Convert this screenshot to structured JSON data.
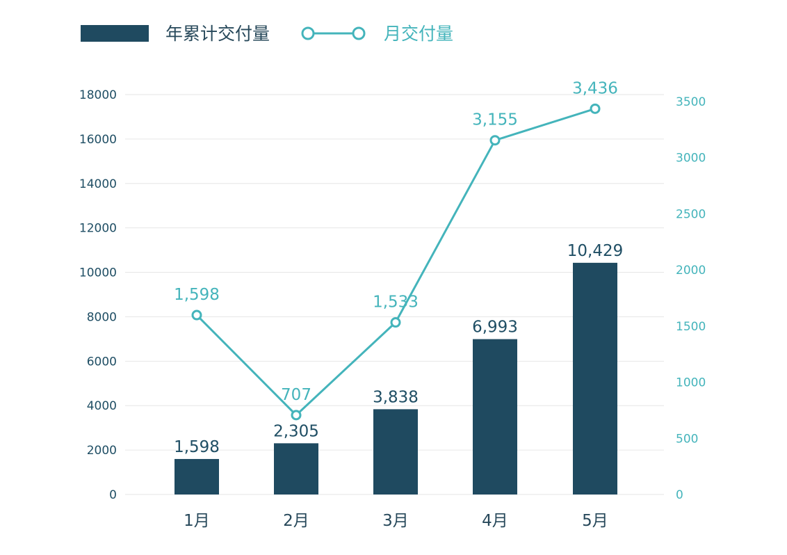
{
  "chart_data": {
    "type": "bar",
    "categories": [
      "1月",
      "2月",
      "3月",
      "4月",
      "5月"
    ],
    "series": [
      {
        "name": "年累计交付量",
        "type": "bar",
        "axis": "left",
        "values": [
          1598,
          2305,
          3838,
          6993,
          10429
        ],
        "labels": [
          "1,598",
          "2,305",
          "3,838",
          "6,993",
          "10,429"
        ]
      },
      {
        "name": "月交付量",
        "type": "line",
        "axis": "right",
        "values": [
          1598,
          707,
          1533,
          3155,
          3436
        ],
        "labels": [
          "1,598",
          "707",
          "1,533",
          "3,155",
          "3,436"
        ]
      }
    ],
    "y_left": {
      "min": 0,
      "max": 18000,
      "ticks": [
        0,
        2000,
        4000,
        6000,
        8000,
        10000,
        12000,
        14000,
        16000,
        18000
      ]
    },
    "y_right": {
      "min": 0,
      "max": 3500,
      "ticks": [
        0,
        500,
        1000,
        1500,
        2000,
        2500,
        3000,
        3500
      ]
    },
    "grid": true,
    "legend_position": "top-left",
    "colors": {
      "bar": "#1f4a60",
      "line": "#44b4bb",
      "grid": "#e6e6e6"
    }
  }
}
